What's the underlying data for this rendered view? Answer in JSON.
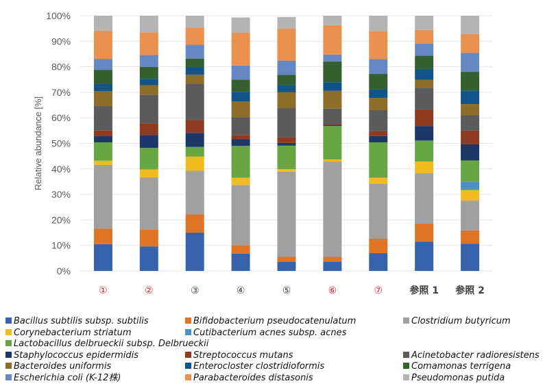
{
  "chart_data": {
    "type": "bar",
    "stacked": true,
    "normalized": true,
    "title": "",
    "xlabel": "",
    "ylabel": "Relative abundance [%]",
    "ylim": [
      0,
      100
    ],
    "yticks": [
      "0%",
      "10%",
      "20%",
      "30%",
      "40%",
      "50%",
      "60%",
      "70%",
      "80%",
      "90%",
      "100%"
    ],
    "grid": true,
    "legend_position": "bottom",
    "categories": [
      "①",
      "②",
      "③",
      "④",
      "⑤",
      "⑥",
      "⑦",
      "参照 1",
      "参照 2"
    ],
    "category_colors": [
      "#e8202e",
      "#e8202e",
      "#404040",
      "#404040",
      "#404040",
      "#e8202e",
      "#e8202e",
      "#404040",
      "#404040"
    ],
    "category_bold": [
      false,
      false,
      false,
      false,
      false,
      false,
      false,
      true,
      true
    ],
    "series": [
      {
        "name": "Bacillus subtilis subsp. subtilis",
        "color": "#3763ac",
        "values": [
          10.5,
          9.6,
          15.0,
          6.8,
          3.6,
          3.7,
          7.0,
          11.5,
          10.7
        ]
      },
      {
        "name": "Bifidobacterium pseudocatenulatum",
        "color": "#e07426",
        "values": [
          6.1,
          6.6,
          7.2,
          3.3,
          1.9,
          1.8,
          5.6,
          7.0,
          5.2
        ]
      },
      {
        "name": "Clostridium butyricum",
        "color": "#a0a0a0",
        "values": [
          25.0,
          20.4,
          17.1,
          23.6,
          33.4,
          37.4,
          21.6,
          19.8,
          11.7
        ]
      },
      {
        "name": "Corynebacterium striatum",
        "color": "#f2bc1e",
        "values": [
          1.6,
          3.2,
          5.5,
          2.8,
          1.0,
          0.8,
          2.3,
          4.6,
          4.1
        ]
      },
      {
        "name": "Cutibacterium acnes subsp. acnes",
        "color": "#4f8fc8",
        "values": [
          0,
          0,
          0,
          0,
          0,
          0,
          0,
          0,
          3.2
        ]
      },
      {
        "name": "Lactobacillus delbrueckii subsp. Delbrueckii",
        "color": "#67a642",
        "values": [
          7.2,
          8.4,
          3.8,
          12.5,
          9.2,
          13.1,
          13.9,
          8.2,
          8.4
        ]
      },
      {
        "name": "Staphylococcus epidermidis",
        "color": "#1e3769",
        "values": [
          2.4,
          5.1,
          5.5,
          2.6,
          1.1,
          0.5,
          2.5,
          5.7,
          6.3
        ]
      },
      {
        "name": "Streptococcus mutans",
        "color": "#8f3b21",
        "values": [
          2.2,
          4.5,
          5.0,
          1.7,
          2.3,
          0.5,
          1.9,
          6.5,
          5.4
        ]
      },
      {
        "name": "Acinetobacter radioresistens",
        "color": "#5b5b5b",
        "values": [
          9.6,
          11.2,
          14.2,
          6.9,
          11.3,
          5.8,
          8.2,
          8.5,
          6.1
        ]
      },
      {
        "name": "Bacteroides uniformis",
        "color": "#8e6c2a",
        "values": [
          5.9,
          3.8,
          3.6,
          6.2,
          6.2,
          7.0,
          4.8,
          3.1,
          4.3
        ]
      },
      {
        "name": "Enterocloster clostridioformis",
        "color": "#11548b",
        "values": [
          2.7,
          2.5,
          3.0,
          3.8,
          2.8,
          3.3,
          3.4,
          4.2,
          5.3
        ]
      },
      {
        "name": "Comamonas terrigena",
        "color": "#345f2e",
        "values": [
          5.6,
          4.6,
          3.3,
          4.8,
          4.0,
          8.2,
          6.0,
          5.2,
          7.3
        ]
      },
      {
        "name": "Escherichia coli (K-12株)",
        "color": "#6688c2",
        "values": [
          4.3,
          4.7,
          5.4,
          5.5,
          5.6,
          2.7,
          5.8,
          4.8,
          7.4
        ]
      },
      {
        "name": "Parabacteroides distasonis",
        "color": "#eb914f",
        "values": [
          11.0,
          8.9,
          6.8,
          12.9,
          12.5,
          11.5,
          11.0,
          5.3,
          7.4
        ]
      },
      {
        "name": "Pseudomonas putida",
        "color": "#b4b4b4",
        "values": [
          5.9,
          6.5,
          4.6,
          5.9,
          4.6,
          3.7,
          6.0,
          5.6,
          7.4
        ]
      }
    ]
  }
}
